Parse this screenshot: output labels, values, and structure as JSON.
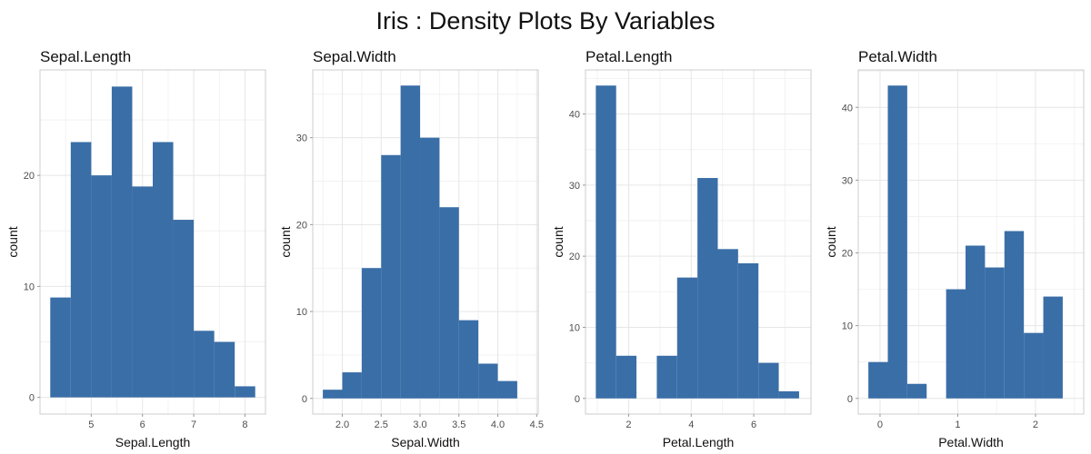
{
  "title": "Iris : Density Plots By Variables",
  "colors": {
    "bar": "#3a6ea7"
  },
  "chart_data": [
    {
      "type": "bar",
      "title": "Sepal.Length",
      "xlabel": "Sepal.Length",
      "ylabel": "count",
      "bin_width": 0.4,
      "bin_start": 4.2,
      "values": [
        9,
        23,
        20,
        28,
        19,
        23,
        16,
        6,
        5,
        1
      ],
      "xlim": [
        4.0,
        8.4
      ],
      "ylim": [
        -1.5,
        29.5
      ],
      "xticks": [
        5,
        6,
        7,
        8
      ],
      "xtick_labels": [
        "5",
        "6",
        "7",
        "8"
      ],
      "yticks": [
        0,
        10,
        20
      ],
      "ytick_labels": [
        "0",
        "10",
        "20"
      ]
    },
    {
      "type": "bar",
      "title": "Sepal.Width",
      "xlabel": "Sepal.Width",
      "ylabel": "count",
      "bin_width": 0.25,
      "bin_start": 1.75,
      "values": [
        1,
        3,
        15,
        28,
        36,
        30,
        22,
        9,
        4,
        2
      ],
      "xlim": [
        1.62,
        4.52
      ],
      "ylim": [
        -1.8,
        37.8
      ],
      "xticks": [
        2.0,
        2.5,
        3.0,
        3.5,
        4.0,
        4.5
      ],
      "xtick_labels": [
        "2.0",
        "2.5",
        "3.0",
        "3.5",
        "4.0",
        "4.5"
      ],
      "yticks": [
        0,
        10,
        20,
        30
      ],
      "ytick_labels": [
        "0",
        "10",
        "20",
        "30"
      ]
    },
    {
      "type": "bar",
      "title": "Petal.Length",
      "xlabel": "Petal.Length",
      "ylabel": "count",
      "bin_width": 0.65,
      "bin_start": 0.95,
      "values": [
        44,
        6,
        0,
        6,
        17,
        31,
        21,
        19,
        5,
        1
      ],
      "xlim": [
        0.62,
        7.83
      ],
      "ylim": [
        -2.2,
        46.2
      ],
      "xticks": [
        2,
        4,
        6
      ],
      "xtick_labels": [
        "2",
        "4",
        "6"
      ],
      "yticks": [
        0,
        10,
        20,
        30,
        40
      ],
      "ytick_labels": [
        "0",
        "10",
        "20",
        "30",
        "40"
      ]
    },
    {
      "type": "bar",
      "title": "Petal.Width",
      "xlabel": "Petal.Width",
      "ylabel": "count",
      "bin_width": 0.25,
      "bin_start": -0.15,
      "values": [
        5,
        43,
        2,
        0,
        15,
        21,
        18,
        23,
        9,
        14
      ],
      "xlim": [
        -0.28,
        2.62
      ],
      "ylim": [
        -2.15,
        45.15
      ],
      "xticks": [
        0,
        1,
        2
      ],
      "xtick_labels": [
        "0",
        "1",
        "2"
      ],
      "yticks": [
        0,
        10,
        20,
        30,
        40
      ],
      "ytick_labels": [
        "0",
        "10",
        "20",
        "30",
        "40"
      ]
    }
  ]
}
